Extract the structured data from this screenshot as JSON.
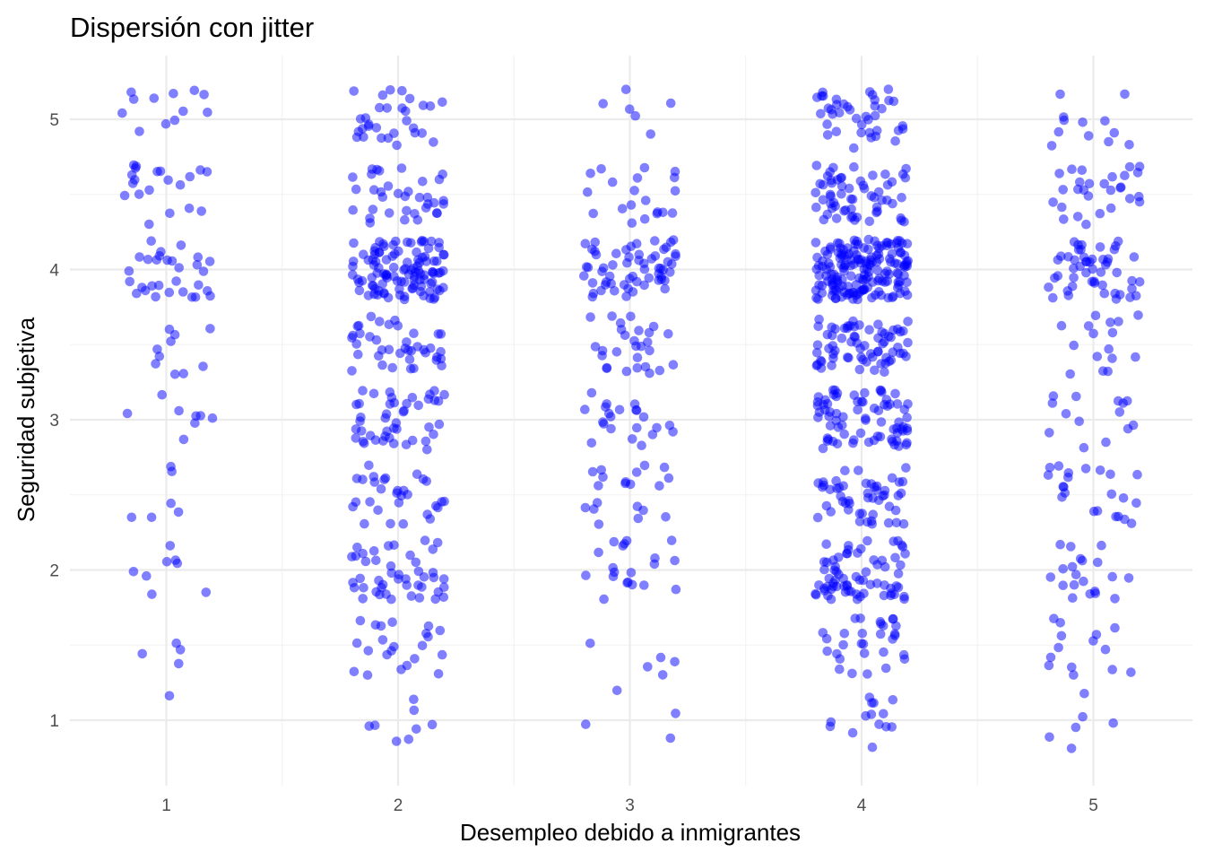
{
  "chart_data": {
    "type": "scatter",
    "title": "Dispersión con jitter",
    "xlabel": "Desempleo debido a inmigrantes",
    "ylabel": "Seguridad subjetiva",
    "x_ticks": [
      1,
      2,
      3,
      4,
      5
    ],
    "y_ticks": [
      1,
      2,
      3,
      4,
      5
    ],
    "xlim": [
      0.6,
      5.4
    ],
    "ylim": [
      0.8,
      5.2
    ],
    "grid": true,
    "point_color": "#0000FF",
    "point_opacity": 0.5,
    "jitter": {
      "x": 0.2,
      "y": 0.2
    },
    "category_x": [
      1,
      2,
      3,
      4,
      5
    ],
    "category_y": [
      1,
      1.5,
      2,
      2.5,
      3,
      3.5,
      4,
      4.5,
      5
    ],
    "counts": [
      [
        1,
        4,
        8,
        6,
        8,
        10,
        30,
        20,
        12
      ],
      [
        8,
        22,
        45,
        30,
        45,
        40,
        110,
        35,
        30
      ],
      [
        4,
        5,
        20,
        20,
        22,
        28,
        60,
        20,
        6
      ],
      [
        14,
        30,
        70,
        50,
        75,
        70,
        170,
        60,
        40
      ],
      [
        6,
        14,
        20,
        22,
        14,
        16,
        50,
        28,
        12
      ]
    ]
  }
}
